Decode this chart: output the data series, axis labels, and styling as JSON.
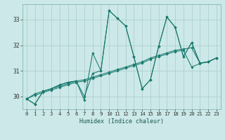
{
  "xlabel": "Humidex (Indice chaleur)",
  "bg_color": "#cce8e8",
  "grid_color": "#aacccc",
  "line_color": "#1a7a6e",
  "xlim": [
    -0.5,
    23.5
  ],
  "ylim": [
    29.5,
    33.6
  ],
  "yticks": [
    30,
    31,
    32,
    33
  ],
  "xticks": [
    0,
    1,
    2,
    3,
    4,
    5,
    6,
    7,
    8,
    9,
    10,
    11,
    12,
    13,
    14,
    15,
    16,
    17,
    18,
    19,
    20,
    21,
    22,
    23
  ],
  "series": [
    [
      29.9,
      29.7,
      30.2,
      30.3,
      30.45,
      30.55,
      30.6,
      30.0,
      30.9,
      31.0,
      33.35,
      33.05,
      32.75,
      31.55,
      30.3,
      30.65,
      31.95,
      33.1,
      32.7,
      31.55,
      32.1,
      31.3,
      31.35,
      31.5
    ],
    [
      29.9,
      29.7,
      30.2,
      30.3,
      30.45,
      30.55,
      30.6,
      29.85,
      31.7,
      31.0,
      33.35,
      33.05,
      32.75,
      31.55,
      30.3,
      30.65,
      31.95,
      33.1,
      32.7,
      31.55,
      32.1,
      31.3,
      31.35,
      31.5
    ],
    [
      29.9,
      30.1,
      30.2,
      30.3,
      30.4,
      30.5,
      30.6,
      30.65,
      30.75,
      30.85,
      30.95,
      31.05,
      31.15,
      31.25,
      31.35,
      31.5,
      31.6,
      31.7,
      31.8,
      31.85,
      31.9,
      31.3,
      31.35,
      31.5
    ],
    [
      29.9,
      30.05,
      30.15,
      30.25,
      30.35,
      30.45,
      30.55,
      30.6,
      30.7,
      30.8,
      30.9,
      31.0,
      31.1,
      31.2,
      31.3,
      31.45,
      31.55,
      31.65,
      31.75,
      31.8,
      31.15,
      31.28,
      31.35,
      31.5
    ]
  ]
}
